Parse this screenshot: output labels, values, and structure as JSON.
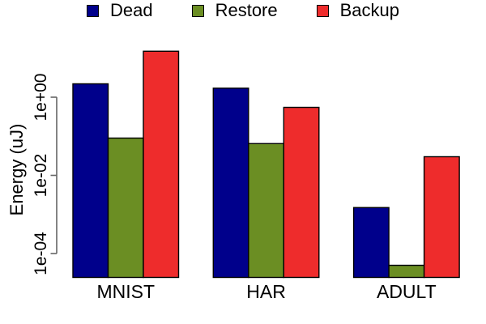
{
  "chart_data": {
    "type": "bar",
    "title": "",
    "xlabel": "",
    "ylabel": "Energy (uJ)",
    "yscale": "log",
    "categories": [
      "MNIST",
      "HAR",
      "ADULT"
    ],
    "series": [
      {
        "name": "Dead",
        "color": "#00008B",
        "values": [
          2.2,
          1.7,
          0.0015
        ]
      },
      {
        "name": "Restore",
        "color": "#6B8E23",
        "values": [
          0.09,
          0.065,
          5e-05
        ]
      },
      {
        "name": "Backup",
        "color": "#EE2C2C",
        "values": [
          15,
          0.55,
          0.03
        ]
      }
    ],
    "yticks": [
      0.0001,
      0.01,
      1
    ],
    "ytick_labels": [
      "1e-04",
      "1e-02",
      "1e+00"
    ],
    "ylim": [
      2.5e-05,
      40
    ],
    "legend_position": "top-center",
    "grid": false,
    "bar_border_color": "#000000",
    "axis_color": "#666666"
  }
}
